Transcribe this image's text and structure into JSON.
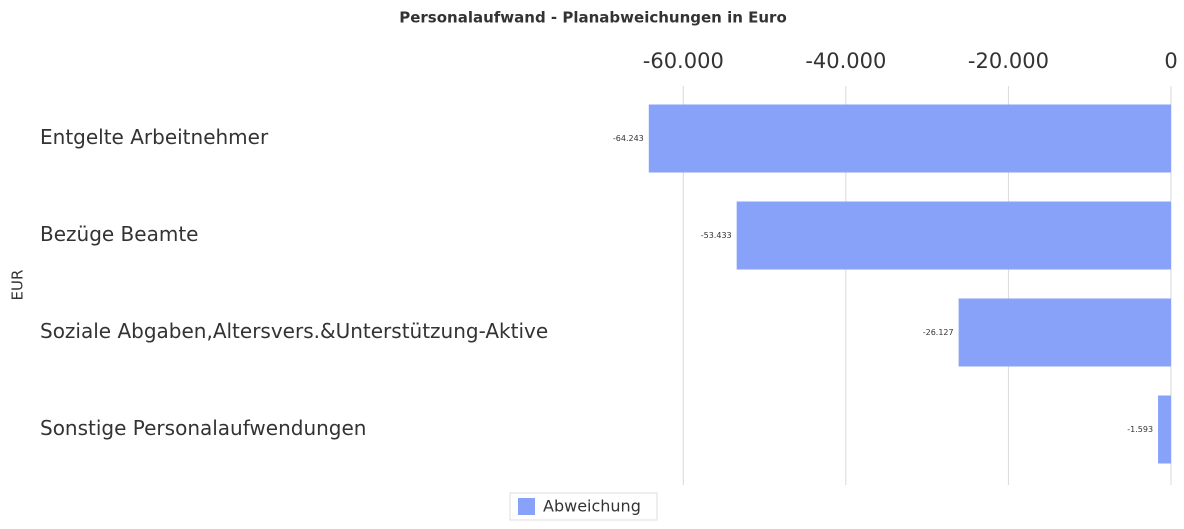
{
  "chart_data": {
    "type": "bar",
    "orientation": "horizontal",
    "title": "Personalaufwand - Planabweichungen in Euro",
    "y_label": "EUR",
    "categories": [
      "Entgelte Arbeitnehmer",
      "Bezüge Beamte",
      "Soziale Abgaben,Altersvers.&Unterstützung-Aktive",
      "Sonstige Personalaufwendungen"
    ],
    "series": [
      {
        "name": "Abweichung",
        "color": "#87a2f8",
        "values": [
          -64243,
          -53433,
          -26127,
          -1593
        ],
        "value_labels": [
          "-64.243",
          "-53.433",
          "-26.127",
          "-1.593"
        ]
      }
    ],
    "xlim": [
      -70000,
      0
    ],
    "xticks": [
      {
        "value": -60000,
        "label": "-60.000"
      },
      {
        "value": -40000,
        "label": "-40.000"
      },
      {
        "value": -20000,
        "label": "-20.000"
      },
      0
    ],
    "grid": true,
    "legend": "bottom"
  }
}
